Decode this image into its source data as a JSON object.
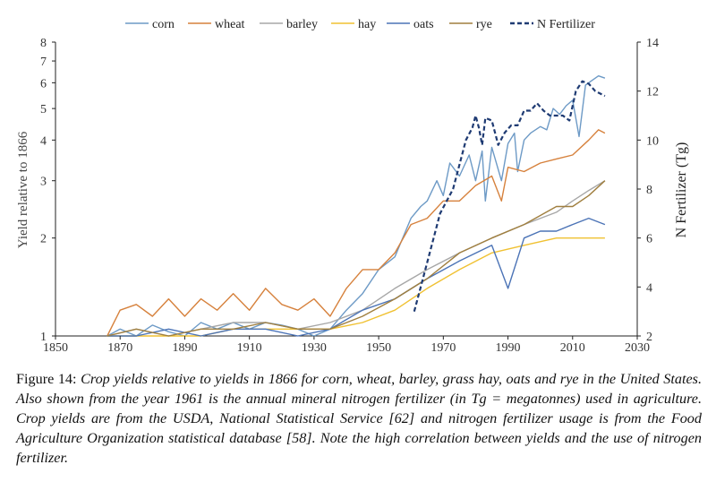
{
  "chart_data": {
    "type": "line",
    "title": "",
    "xlabel": "",
    "ylabel": "Yield relative to 1866",
    "y2label": "N Fertilizer (Tg)",
    "xlim": [
      1850,
      2030
    ],
    "ylim": [
      1,
      8
    ],
    "y2lim": [
      2,
      14
    ],
    "y_scale": "log",
    "x_ticks": [
      "1850",
      "1870",
      "1890",
      "1910",
      "1930",
      "1950",
      "1970",
      "1990",
      "2010",
      "2030"
    ],
    "y_ticks": [
      "1",
      "2",
      "3",
      "4",
      "5",
      "6",
      "7",
      "8"
    ],
    "y2_ticks": [
      "2",
      "4",
      "6",
      "8",
      "10",
      "12",
      "14"
    ],
    "legend_position": "top",
    "grid": false,
    "series": [
      {
        "name": "corn",
        "color": "#6d9ac6",
        "axis": "left",
        "dash": "solid",
        "x": [
          1866,
          1870,
          1875,
          1880,
          1885,
          1890,
          1895,
          1900,
          1905,
          1910,
          1915,
          1920,
          1925,
          1930,
          1935,
          1940,
          1945,
          1950,
          1955,
          1960,
          1963,
          1965,
          1968,
          1970,
          1972,
          1975,
          1978,
          1980,
          1982,
          1983,
          1985,
          1988,
          1990,
          1992,
          1993,
          1995,
          1997,
          2000,
          2002,
          2004,
          2006,
          2008,
          2010,
          2012,
          2014,
          2016,
          2018,
          2020
        ],
        "y": [
          1.0,
          1.05,
          1.0,
          1.08,
          1.03,
          1.0,
          1.1,
          1.05,
          1.1,
          1.05,
          1.1,
          1.08,
          1.05,
          1.0,
          1.05,
          1.2,
          1.35,
          1.6,
          1.75,
          2.3,
          2.5,
          2.6,
          3.0,
          2.7,
          3.4,
          3.1,
          3.6,
          3.0,
          3.7,
          2.6,
          3.8,
          3.0,
          3.9,
          4.2,
          3.2,
          4.0,
          4.2,
          4.4,
          4.3,
          5.0,
          4.8,
          5.1,
          5.3,
          4.1,
          5.9,
          6.1,
          6.3,
          6.2
        ]
      },
      {
        "name": "wheat",
        "color": "#d6813c",
        "axis": "left",
        "dash": "solid",
        "x": [
          1866,
          1870,
          1875,
          1880,
          1885,
          1890,
          1895,
          1900,
          1905,
          1910,
          1915,
          1920,
          1925,
          1930,
          1935,
          1940,
          1945,
          1950,
          1955,
          1960,
          1965,
          1970,
          1975,
          1980,
          1985,
          1988,
          1990,
          1995,
          2000,
          2005,
          2010,
          2015,
          2018,
          2020
        ],
        "y": [
          1.0,
          1.2,
          1.25,
          1.15,
          1.3,
          1.15,
          1.3,
          1.2,
          1.35,
          1.2,
          1.4,
          1.25,
          1.2,
          1.3,
          1.15,
          1.4,
          1.6,
          1.6,
          1.8,
          2.2,
          2.3,
          2.6,
          2.6,
          2.9,
          3.1,
          2.6,
          3.3,
          3.2,
          3.4,
          3.5,
          3.6,
          4.0,
          4.3,
          4.2
        ]
      },
      {
        "name": "barley",
        "color": "#a7a7a7",
        "axis": "left",
        "dash": "solid",
        "x": [
          1866,
          1875,
          1885,
          1895,
          1905,
          1915,
          1925,
          1935,
          1945,
          1955,
          1965,
          1975,
          1985,
          1995,
          2005,
          2010,
          2015,
          2020
        ],
        "y": [
          1.0,
          1.05,
          1.0,
          1.05,
          1.1,
          1.1,
          1.05,
          1.1,
          1.2,
          1.4,
          1.6,
          1.8,
          2.0,
          2.2,
          2.4,
          2.6,
          2.8,
          3.0
        ]
      },
      {
        "name": "hay",
        "color": "#f0c132",
        "axis": "left",
        "dash": "solid",
        "x": [
          1866,
          1875,
          1885,
          1895,
          1905,
          1915,
          1925,
          1935,
          1945,
          1955,
          1965,
          1975,
          1985,
          1995,
          2005,
          2010,
          2015,
          2020
        ],
        "y": [
          1.0,
          1.0,
          1.0,
          1.0,
          1.05,
          1.05,
          1.05,
          1.05,
          1.1,
          1.2,
          1.4,
          1.6,
          1.8,
          1.9,
          2.0,
          2.0,
          2.0,
          2.0
        ]
      },
      {
        "name": "oats",
        "color": "#4b73b6",
        "axis": "left",
        "dash": "solid",
        "x": [
          1866,
          1875,
          1885,
          1895,
          1905,
          1915,
          1925,
          1935,
          1945,
          1955,
          1965,
          1975,
          1985,
          1990,
          1995,
          2000,
          2005,
          2010,
          2015,
          2020
        ],
        "y": [
          1.0,
          1.0,
          1.05,
          1.0,
          1.05,
          1.05,
          1.0,
          1.05,
          1.2,
          1.3,
          1.5,
          1.7,
          1.9,
          1.4,
          2.0,
          2.1,
          2.1,
          2.2,
          2.3,
          2.2
        ]
      },
      {
        "name": "rye",
        "color": "#a07f3f",
        "axis": "left",
        "dash": "solid",
        "x": [
          1866,
          1875,
          1885,
          1895,
          1905,
          1915,
          1925,
          1935,
          1945,
          1955,
          1965,
          1975,
          1985,
          1995,
          2005,
          2010,
          2015,
          2020
        ],
        "y": [
          1.0,
          1.05,
          1.0,
          1.05,
          1.05,
          1.1,
          1.05,
          1.05,
          1.15,
          1.3,
          1.5,
          1.8,
          2.0,
          2.2,
          2.5,
          2.5,
          2.7,
          3.0
        ]
      },
      {
        "name": "N Fertilizer",
        "color": "#1f3b73",
        "axis": "right",
        "dash": "dashed",
        "x": [
          1961,
          1963,
          1965,
          1967,
          1969,
          1971,
          1973,
          1975,
          1977,
          1979,
          1980,
          1981,
          1982,
          1983,
          1985,
          1987,
          1989,
          1991,
          1993,
          1995,
          1997,
          1999,
          2001,
          2003,
          2005,
          2007,
          2009,
          2011,
          2013,
          2015,
          2017,
          2020
        ],
        "y": [
          3.0,
          4.0,
          5.0,
          6.0,
          7.0,
          7.5,
          8.0,
          9.0,
          10.0,
          10.5,
          11.0,
          10.5,
          9.8,
          10.9,
          10.8,
          9.8,
          10.3,
          10.6,
          10.6,
          11.2,
          11.2,
          11.5,
          11.2,
          11.0,
          11.0,
          11.0,
          10.8,
          12.0,
          12.4,
          12.3,
          12.0,
          11.8
        ]
      }
    ]
  },
  "caption": {
    "lead": "Figure 14: ",
    "body": "Crop yields relative to yields in 1866 for corn, wheat, barley, grass hay, oats and rye in the United States. Also shown from the year 1961 is the annual mineral nitrogen fertilizer (in Tg = megatonnes) used in agriculture. Crop yields are from the USDA, National Statistical Service [62] and nitrogen fertilizer usage is from the Food Agriculture Organization statistical database [58]. Note the high correlation between yields and the use of nitrogen fertilizer."
  }
}
